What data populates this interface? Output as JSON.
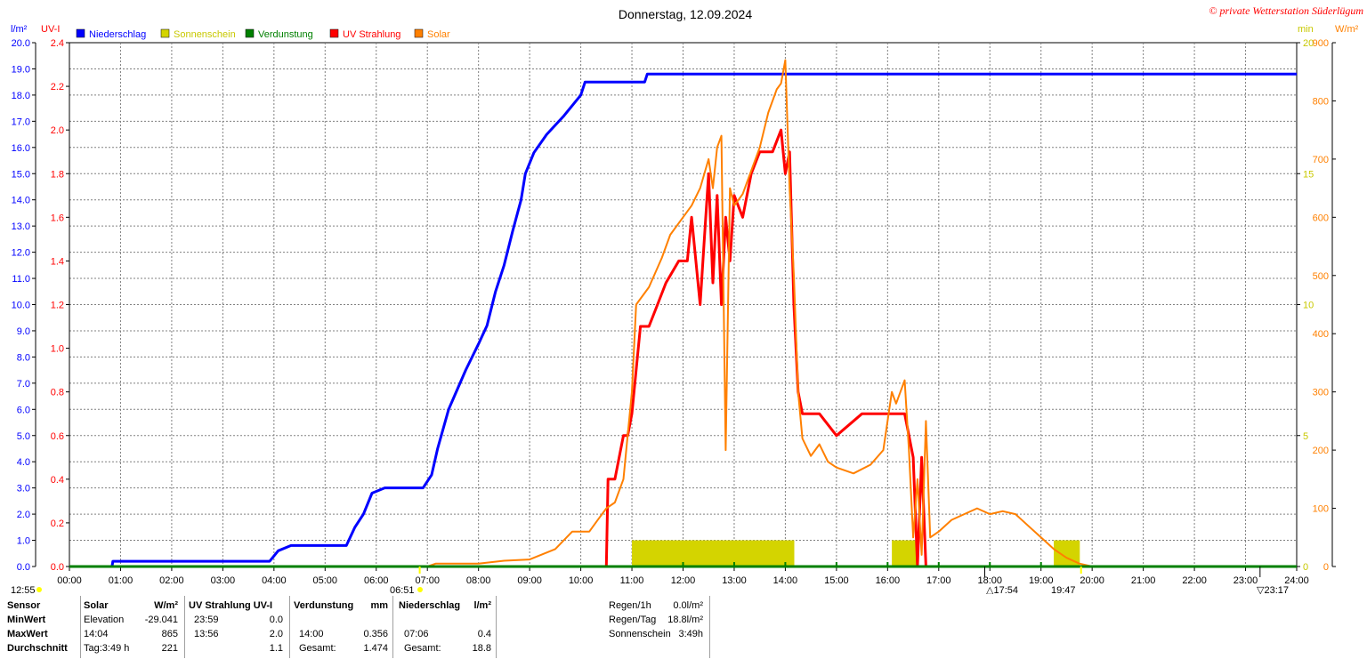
{
  "title": "Donnerstag, 12.09.2024",
  "copyright": "© private Wetterstation Süderlügum",
  "colors": {
    "precip": "#0000ff",
    "sunshine": "#d4d400",
    "evap": "#008000",
    "uv": "#ff0000",
    "solar": "#ff8000",
    "grid": "#808080",
    "sun_marker": "#ffff00"
  },
  "axes": {
    "left1": {
      "unit": "l/m²",
      "ticks": [
        "20.0",
        "19.0",
        "18.0",
        "17.0",
        "16.0",
        "15.0",
        "14.0",
        "13.0",
        "12.0",
        "11.0",
        "10.0",
        "9.0",
        "8.0",
        "7.0",
        "6.0",
        "5.0",
        "4.0",
        "3.0",
        "2.0",
        "1.0",
        "0.0"
      ]
    },
    "left2": {
      "unit": "UV-I",
      "ticks": [
        "2.4",
        "2.2",
        "2.0",
        "1.8",
        "1.6",
        "1.4",
        "1.2",
        "1.0",
        "0.8",
        "0.6",
        "0.4",
        "0.2",
        "0.0"
      ]
    },
    "right1": {
      "unit": "min",
      "ticks": [
        "20",
        "15",
        "10",
        "5",
        "0"
      ]
    },
    "right2": {
      "unit": "W/m²",
      "ticks": [
        "900",
        "800",
        "700",
        "600",
        "500",
        "400",
        "300",
        "200",
        "100",
        "0"
      ]
    },
    "x": {
      "ticks": [
        "00:00",
        "01:00",
        "02:00",
        "03:00",
        "04:00",
        "05:00",
        "06:00",
        "07:00",
        "08:00",
        "09:00",
        "10:00",
        "11:00",
        "12:00",
        "13:00",
        "14:00",
        "15:00",
        "16:00",
        "17:00",
        "18:00",
        "19:00",
        "20:00",
        "21:00",
        "22:00",
        "23:00",
        "24:00"
      ]
    }
  },
  "legend": [
    "Niederschlag",
    "Sonnenschein",
    "Verdunstung",
    "UV Strahlung",
    "Solar"
  ],
  "markers": {
    "moon_left": "12:55",
    "sunrise": "06:51",
    "t1": "17:54",
    "t2": "19:47",
    "t3": "23:17"
  },
  "chart_data": {
    "type": "line",
    "title": "Donnerstag, 12.09.2024",
    "x_range": [
      "00:00",
      "24:00"
    ],
    "grid": true,
    "series": [
      {
        "name": "Niederschlag",
        "axis": "l/m²",
        "ylim": [
          0,
          20
        ],
        "points": [
          [
            "00:00",
            0.0
          ],
          [
            "00:50",
            0.0
          ],
          [
            "00:51",
            0.2
          ],
          [
            "03:55",
            0.2
          ],
          [
            "04:00",
            0.4
          ],
          [
            "04:05",
            0.6
          ],
          [
            "04:20",
            0.8
          ],
          [
            "05:25",
            0.8
          ],
          [
            "05:35",
            1.5
          ],
          [
            "05:45",
            2.0
          ],
          [
            "05:55",
            2.8
          ],
          [
            "06:10",
            3.0
          ],
          [
            "06:55",
            3.0
          ],
          [
            "07:05",
            3.5
          ],
          [
            "07:12",
            4.5
          ],
          [
            "07:25",
            6.0
          ],
          [
            "07:45",
            7.5
          ],
          [
            "08:00",
            8.5
          ],
          [
            "08:10",
            9.2
          ],
          [
            "08:20",
            10.5
          ],
          [
            "08:30",
            11.5
          ],
          [
            "08:40",
            12.8
          ],
          [
            "08:50",
            14.0
          ],
          [
            "08:55",
            15.0
          ],
          [
            "09:05",
            15.8
          ],
          [
            "09:20",
            16.5
          ],
          [
            "09:40",
            17.2
          ],
          [
            "10:00",
            18.0
          ],
          [
            "10:05",
            18.5
          ],
          [
            "11:15",
            18.5
          ],
          [
            "11:18",
            18.8
          ],
          [
            "24:00",
            18.8
          ]
        ]
      },
      {
        "name": "Sonnenschein",
        "axis": "min",
        "ylim": [
          0,
          20
        ],
        "type": "bar",
        "bars": [
          [
            "11:00",
            1.0
          ],
          [
            "11:10",
            1.0
          ],
          [
            "11:20",
            1.0
          ],
          [
            "11:30",
            1.0
          ],
          [
            "11:40",
            1.0
          ],
          [
            "11:50",
            1.0
          ],
          [
            "12:00",
            1.0
          ],
          [
            "12:10",
            1.0
          ],
          [
            "12:20",
            1.0
          ],
          [
            "12:30",
            1.0
          ],
          [
            "12:40",
            1.0
          ],
          [
            "12:50",
            1.0
          ],
          [
            "13:00",
            1.0
          ],
          [
            "13:10",
            1.0
          ],
          [
            "13:20",
            1.0
          ],
          [
            "13:30",
            1.0
          ],
          [
            "13:40",
            1.0
          ],
          [
            "13:50",
            1.0
          ],
          [
            "14:00",
            1.0
          ],
          [
            "16:05",
            1.0
          ],
          [
            "16:15",
            1.0
          ],
          [
            "16:25",
            1.0
          ],
          [
            "19:15",
            1.0
          ],
          [
            "19:25",
            1.0
          ],
          [
            "19:35",
            1.0
          ]
        ]
      },
      {
        "name": "UV Strahlung",
        "axis": "UV-I",
        "ylim": [
          0,
          2.4
        ],
        "points": [
          [
            "00:00",
            0
          ],
          [
            "10:30",
            0
          ],
          [
            "10:32",
            0.4
          ],
          [
            "10:40",
            0.4
          ],
          [
            "10:45",
            0.5
          ],
          [
            "10:50",
            0.6
          ],
          [
            "10:55",
            0.6
          ],
          [
            "11:00",
            0.7
          ],
          [
            "11:05",
            0.9
          ],
          [
            "11:10",
            1.1
          ],
          [
            "11:20",
            1.1
          ],
          [
            "11:30",
            1.2
          ],
          [
            "11:40",
            1.3
          ],
          [
            "11:55",
            1.4
          ],
          [
            "12:05",
            1.4
          ],
          [
            "12:10",
            1.6
          ],
          [
            "12:15",
            1.4
          ],
          [
            "12:20",
            1.2
          ],
          [
            "12:25",
            1.5
          ],
          [
            "12:30",
            1.8
          ],
          [
            "12:35",
            1.3
          ],
          [
            "12:40",
            1.7
          ],
          [
            "12:45",
            1.2
          ],
          [
            "12:50",
            1.6
          ],
          [
            "12:55",
            1.4
          ],
          [
            "13:00",
            1.7
          ],
          [
            "13:10",
            1.6
          ],
          [
            "13:20",
            1.8
          ],
          [
            "13:30",
            1.9
          ],
          [
            "13:45",
            1.9
          ],
          [
            "13:55",
            2.0
          ],
          [
            "14:00",
            1.8
          ],
          [
            "14:05",
            1.9
          ],
          [
            "14:10",
            1.2
          ],
          [
            "14:15",
            0.8
          ],
          [
            "14:20",
            0.7
          ],
          [
            "14:30",
            0.7
          ],
          [
            "14:40",
            0.7
          ],
          [
            "15:00",
            0.6
          ],
          [
            "15:30",
            0.7
          ],
          [
            "15:50",
            0.7
          ],
          [
            "16:00",
            0.7
          ],
          [
            "16:20",
            0.7
          ],
          [
            "16:30",
            0.5
          ],
          [
            "16:35",
            0.0
          ],
          [
            "16:40",
            0.5
          ],
          [
            "16:45",
            0.0
          ],
          [
            "24:00",
            0
          ]
        ]
      },
      {
        "name": "Solar",
        "axis": "W/m²",
        "ylim": [
          0,
          900
        ],
        "points": [
          [
            "00:00",
            0
          ],
          [
            "07:00",
            0
          ],
          [
            "07:10",
            5
          ],
          [
            "08:00",
            5
          ],
          [
            "08:30",
            10
          ],
          [
            "09:00",
            12
          ],
          [
            "09:30",
            30
          ],
          [
            "09:50",
            60
          ],
          [
            "10:10",
            60
          ],
          [
            "10:20",
            80
          ],
          [
            "10:30",
            100
          ],
          [
            "10:40",
            110
          ],
          [
            "10:50",
            150
          ],
          [
            "11:00",
            300
          ],
          [
            "11:05",
            450
          ],
          [
            "11:20",
            480
          ],
          [
            "11:35",
            530
          ],
          [
            "11:45",
            570
          ],
          [
            "12:00",
            600
          ],
          [
            "12:10",
            620
          ],
          [
            "12:20",
            650
          ],
          [
            "12:30",
            700
          ],
          [
            "12:35",
            650
          ],
          [
            "12:40",
            720
          ],
          [
            "12:45",
            740
          ],
          [
            "12:50",
            200
          ],
          [
            "12:55",
            650
          ],
          [
            "13:00",
            620
          ],
          [
            "13:10",
            640
          ],
          [
            "13:20",
            680
          ],
          [
            "13:30",
            720
          ],
          [
            "13:40",
            780
          ],
          [
            "13:50",
            820
          ],
          [
            "13:55",
            830
          ],
          [
            "14:00",
            870
          ],
          [
            "14:05",
            650
          ],
          [
            "14:10",
            500
          ],
          [
            "14:15",
            300
          ],
          [
            "14:20",
            220
          ],
          [
            "14:30",
            190
          ],
          [
            "14:40",
            210
          ],
          [
            "14:50",
            180
          ],
          [
            "15:00",
            170
          ],
          [
            "15:20",
            160
          ],
          [
            "15:40",
            175
          ],
          [
            "15:55",
            200
          ],
          [
            "16:05",
            300
          ],
          [
            "16:10",
            280
          ],
          [
            "16:20",
            320
          ],
          [
            "16:25",
            200
          ],
          [
            "16:30",
            50
          ],
          [
            "16:35",
            150
          ],
          [
            "16:40",
            20
          ],
          [
            "16:45",
            250
          ],
          [
            "16:50",
            50
          ],
          [
            "17:00",
            60
          ],
          [
            "17:15",
            80
          ],
          [
            "17:30",
            90
          ],
          [
            "17:45",
            100
          ],
          [
            "18:00",
            90
          ],
          [
            "18:15",
            95
          ],
          [
            "18:30",
            90
          ],
          [
            "18:45",
            70
          ],
          [
            "19:00",
            50
          ],
          [
            "19:15",
            30
          ],
          [
            "19:30",
            15
          ],
          [
            "19:45",
            5
          ],
          [
            "20:00",
            0
          ],
          [
            "24:00",
            0
          ]
        ]
      },
      {
        "name": "Verdunstung",
        "axis": "l/m²",
        "ylim": [
          0,
          20
        ],
        "points": [
          [
            "00:00",
            0
          ],
          [
            "24:00",
            0
          ]
        ]
      }
    ]
  },
  "summary": {
    "headers": {
      "sensor": "Sensor",
      "solar": "Solar",
      "solar_unit": "W/m²",
      "uv": "UV Strahlung UV-I",
      "evap": "Verdunstung",
      "evap_unit": "mm",
      "precip": "Niederschlag",
      "precip_unit": "l/m²"
    },
    "rows": [
      {
        "label": "MinWert",
        "solar_a": "Elevation",
        "solar_b": "-29.041",
        "uv_a": "23:59",
        "uv_b": "0.0",
        "evap_a": "",
        "evap_b": "",
        "precip_a": "",
        "precip_b": ""
      },
      {
        "label": "MaxWert",
        "solar_a": "14:04",
        "solar_b": "865",
        "uv_a": "13:56",
        "uv_b": "2.0",
        "evap_a": "14:00",
        "evap_b": "0.356",
        "precip_a": "07:06",
        "precip_b": "0.4"
      },
      {
        "label": "Durchschnitt",
        "solar_a": "Tag:3:49 h",
        "solar_b": "221",
        "uv_a": "",
        "uv_b": "1.1",
        "evap_a": "Gesamt:",
        "evap_b": "1.474",
        "precip_a": "Gesamt:",
        "precip_b": "18.8"
      }
    ],
    "extra": [
      {
        "label": "Regen/1h",
        "value": "0.0l/m²"
      },
      {
        "label": "Regen/Tag",
        "value": "18.8l/m²"
      },
      {
        "label": "Sonnenschein",
        "value": "3:49h"
      }
    ]
  }
}
